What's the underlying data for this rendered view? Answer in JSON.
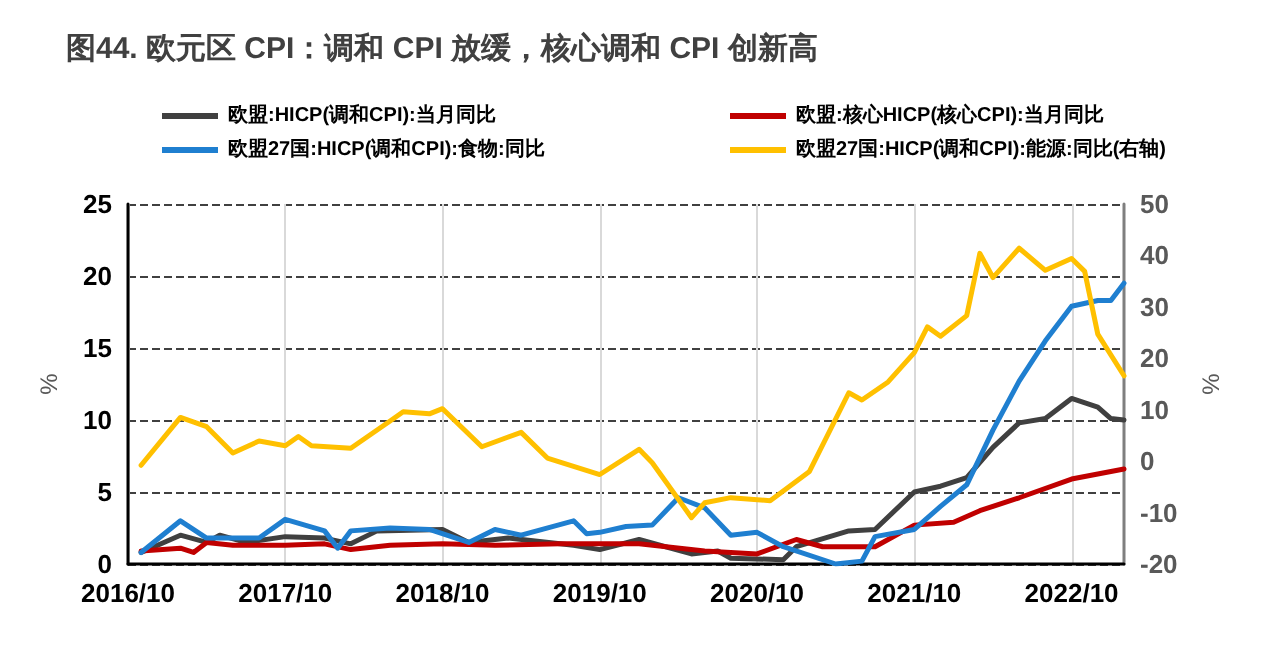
{
  "chart_data": {
    "type": "line",
    "title": "图44. 欧元区 CPI：调和 CPI 放缓，核心调和 CPI 创新高",
    "ylabel": "%",
    "y2label": "%",
    "xlim": [
      "2016-10",
      "2023-02"
    ],
    "xticks": [
      {
        "value": "2016-10",
        "label": "2016/10"
      },
      {
        "value": "2017-10",
        "label": "2017/10"
      },
      {
        "value": "2018-10",
        "label": "2018/10"
      },
      {
        "value": "2019-10",
        "label": "2019/10"
      },
      {
        "value": "2020-10",
        "label": "2020/10"
      },
      {
        "value": "2021-10",
        "label": "2021/10"
      },
      {
        "value": "2022-10",
        "label": "2022/10"
      }
    ],
    "ylim": [
      0,
      25
    ],
    "yticks": [
      0,
      5,
      10,
      15,
      20,
      25
    ],
    "y2lim": [
      -20,
      50
    ],
    "y2ticks": [
      -20,
      -10,
      0,
      10,
      20,
      30,
      40,
      50
    ],
    "grid": true,
    "legend": "top",
    "marker": "none",
    "line_style": "solid",
    "series": [
      {
        "name": "欧盟:HICP(调和CPI):当月同比",
        "color": "#404040",
        "x": [
          "2016-11",
          "2017-02",
          "2017-04",
          "2017-05",
          "2017-07",
          "2017-10",
          "2018-01",
          "2018-03",
          "2018-05",
          "2018-10",
          "2018-12",
          "2019-03",
          "2019-08",
          "2019-10",
          "2020-01",
          "2020-05",
          "2020-07",
          "2020-08",
          "2020-12",
          "2021-01",
          "2021-05",
          "2021-07",
          "2021-10",
          "2021-12",
          "2022-02",
          "2022-04",
          "2022-06",
          "2022-08",
          "2022-10",
          "2022-12",
          "2023-01",
          "2023-02"
        ],
        "values": [
          0.8,
          2.0,
          1.5,
          2.0,
          1.5,
          1.9,
          1.8,
          1.4,
          2.3,
          2.4,
          1.5,
          1.8,
          1.3,
          1.0,
          1.7,
          0.7,
          0.9,
          0.4,
          0.3,
          1.2,
          2.3,
          2.4,
          5.0,
          5.4,
          6.0,
          8.1,
          9.8,
          10.1,
          11.5,
          10.9,
          10.1,
          10.0
        ]
      },
      {
        "name": "欧盟:核心HICP(核心CPI):当月同比",
        "color": "#c00000",
        "x": [
          "2016-11",
          "2017-02",
          "2017-03",
          "2017-04",
          "2017-06",
          "2017-10",
          "2018-01",
          "2018-03",
          "2018-06",
          "2018-10",
          "2019-02",
          "2019-07",
          "2019-10",
          "2020-01",
          "2020-06",
          "2020-10",
          "2021-01",
          "2021-03",
          "2021-07",
          "2021-10",
          "2022-01",
          "2022-03",
          "2022-06",
          "2022-10",
          "2023-02"
        ],
        "values": [
          0.9,
          1.1,
          0.8,
          1.5,
          1.3,
          1.3,
          1.4,
          1.0,
          1.3,
          1.4,
          1.3,
          1.4,
          1.4,
          1.4,
          0.9,
          0.7,
          1.7,
          1.2,
          1.2,
          2.7,
          2.9,
          3.7,
          4.6,
          5.9,
          6.6
        ]
      },
      {
        "name": "欧盟27国:HICP(调和CPI):食物:同比",
        "color": "#1f7fd0",
        "x": [
          "2016-11",
          "2017-02",
          "2017-04",
          "2017-08",
          "2017-10",
          "2018-01",
          "2018-02",
          "2018-03",
          "2018-06",
          "2018-09",
          "2018-12",
          "2019-02",
          "2019-04",
          "2019-08",
          "2019-09",
          "2019-10",
          "2019-12",
          "2020-02",
          "2020-04",
          "2020-06",
          "2020-08",
          "2020-10",
          "2020-12",
          "2021-04",
          "2021-06",
          "2021-07",
          "2021-10",
          "2021-12",
          "2022-02",
          "2022-04",
          "2022-06",
          "2022-08",
          "2022-10",
          "2022-12",
          "2023-01",
          "2023-02"
        ],
        "values": [
          0.8,
          3.0,
          1.8,
          1.8,
          3.1,
          2.3,
          1.1,
          2.3,
          2.5,
          2.4,
          1.5,
          2.4,
          2.0,
          3.0,
          2.1,
          2.2,
          2.6,
          2.7,
          4.6,
          3.9,
          2.0,
          2.2,
          1.2,
          0,
          0.2,
          1.9,
          2.4,
          4.0,
          5.5,
          9.3,
          12.7,
          15.5,
          17.9,
          18.3,
          18.3,
          19.5
        ]
      },
      {
        "name": "欧盟27国:HICP(调和CPI):能源:同比(右轴)",
        "color": "#ffc000",
        "axis": "y2",
        "x": [
          "2016-11",
          "2017-02",
          "2017-04",
          "2017-06",
          "2017-08",
          "2017-10",
          "2017-11",
          "2017-12",
          "2018-03",
          "2018-06",
          "2018-07",
          "2018-09",
          "2018-10",
          "2019-01",
          "2019-04",
          "2019-06",
          "2019-08",
          "2019-10",
          "2020-01",
          "2020-02",
          "2020-05",
          "2020-06",
          "2020-08",
          "2020-11",
          "2021-02",
          "2021-05",
          "2021-06",
          "2021-08",
          "2021-10",
          "2021-11",
          "2021-12",
          "2022-02",
          "2022-03",
          "2022-04",
          "2022-06",
          "2022-08",
          "2022-10",
          "2022-11",
          "2022-12",
          "2023-02"
        ],
        "values": [
          -0.8,
          8.5,
          6.7,
          1.6,
          3.9,
          3,
          4.8,
          3,
          2.5,
          7.8,
          9.6,
          9.2,
          10.2,
          2.8,
          5.6,
          0.6,
          -1.0,
          -2.6,
          2.3,
          -0.3,
          -11,
          -8.1,
          -7.1,
          -7.7,
          -2,
          13.3,
          11.9,
          15.4,
          21.1,
          26.1,
          24.3,
          28.3,
          40.4,
          35.7,
          41.4,
          37.1,
          39.4,
          36.9,
          24.7,
          16.6
        ]
      }
    ]
  }
}
